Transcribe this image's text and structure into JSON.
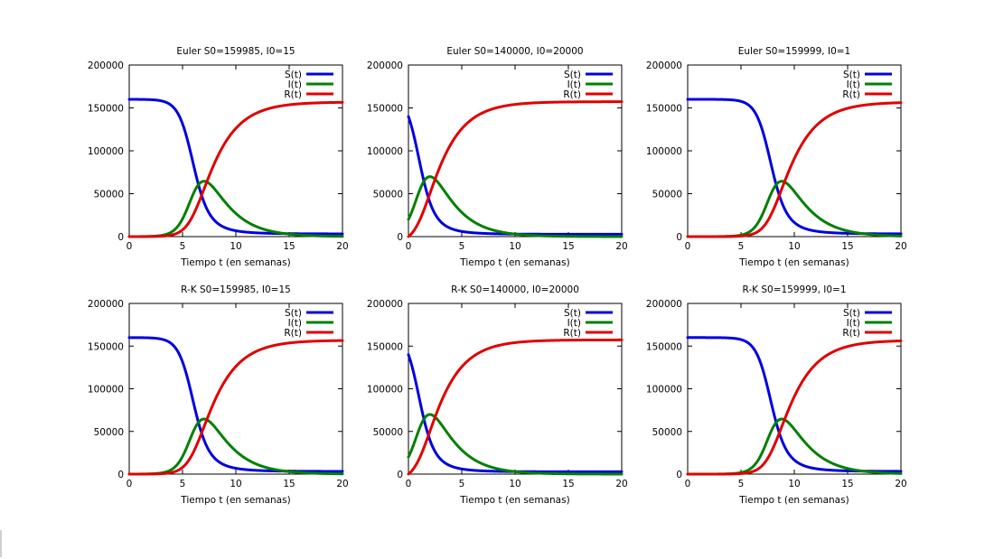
{
  "chart_data": [
    {
      "type": "line",
      "title": "Euler S0=159985, I0=15",
      "xlabel": "Tiempo t (en semanas)",
      "ylabel": "",
      "xlim": [
        0,
        20
      ],
      "ylim": [
        0,
        200000
      ],
      "xticks": [
        "0",
        "5",
        "10",
        "15",
        "20"
      ],
      "yticks": [
        "0",
        "50000",
        "100000",
        "150000",
        "200000"
      ],
      "params": {
        "S0": 159985,
        "I0": 15
      },
      "legend": "top-right",
      "series": [
        {
          "name": "S(t)",
          "color": "#0000e0"
        },
        {
          "name": "I(t)",
          "color": "#008000"
        },
        {
          "name": "R(t)",
          "color": "#e00000"
        }
      ]
    },
    {
      "type": "line",
      "title": "Euler S0=140000, I0=20000",
      "xlabel": "Tiempo t (en semanas)",
      "ylabel": "",
      "xlim": [
        0,
        20
      ],
      "ylim": [
        0,
        200000
      ],
      "xticks": [
        "0",
        "5",
        "10",
        "15",
        "20"
      ],
      "yticks": [
        "0",
        "50000",
        "100000",
        "150000",
        "200000"
      ],
      "params": {
        "S0": 140000,
        "I0": 20000
      },
      "legend": "top-right",
      "series": [
        {
          "name": "S(t)",
          "color": "#0000e0"
        },
        {
          "name": "I(t)",
          "color": "#008000"
        },
        {
          "name": "R(t)",
          "color": "#e00000"
        }
      ]
    },
    {
      "type": "line",
      "title": "Euler S0=159999, I0=1",
      "xlabel": "Tiempo t (en semanas)",
      "ylabel": "",
      "xlim": [
        0,
        20
      ],
      "ylim": [
        0,
        200000
      ],
      "xticks": [
        "0",
        "5",
        "10",
        "15",
        "20"
      ],
      "yticks": [
        "0",
        "50000",
        "100000",
        "150000",
        "200000"
      ],
      "params": {
        "S0": 159999,
        "I0": 1
      },
      "legend": "top-right",
      "series": [
        {
          "name": "S(t)",
          "color": "#0000e0"
        },
        {
          "name": "I(t)",
          "color": "#008000"
        },
        {
          "name": "R(t)",
          "color": "#e00000"
        }
      ]
    },
    {
      "type": "line",
      "title": "R-K S0=159985, I0=15",
      "xlabel": "Tiempo t (en semanas)",
      "ylabel": "",
      "xlim": [
        0,
        20
      ],
      "ylim": [
        0,
        200000
      ],
      "xticks": [
        "0",
        "5",
        "10",
        "15",
        "20"
      ],
      "yticks": [
        "0",
        "50000",
        "100000",
        "150000",
        "200000"
      ],
      "params": {
        "S0": 159985,
        "I0": 15
      },
      "legend": "top-right",
      "series": [
        {
          "name": "S(t)",
          "color": "#0000e0"
        },
        {
          "name": "I(t)",
          "color": "#008000"
        },
        {
          "name": "R(t)",
          "color": "#e00000"
        }
      ]
    },
    {
      "type": "line",
      "title": "R-K S0=140000, I0=20000",
      "xlabel": "Tiempo t (en semanas)",
      "ylabel": "",
      "xlim": [
        0,
        20
      ],
      "ylim": [
        0,
        200000
      ],
      "xticks": [
        "0",
        "5",
        "10",
        "15",
        "20"
      ],
      "yticks": [
        "0",
        "50000",
        "100000",
        "150000",
        "200000"
      ],
      "params": {
        "S0": 140000,
        "I0": 20000
      },
      "legend": "top-right",
      "series": [
        {
          "name": "S(t)",
          "color": "#0000e0"
        },
        {
          "name": "I(t)",
          "color": "#008000"
        },
        {
          "name": "R(t)",
          "color": "#e00000"
        }
      ]
    },
    {
      "type": "line",
      "title": "R-K S0=159999, I0=1",
      "xlabel": "Tiempo t (en semanas)",
      "ylabel": "",
      "xlim": [
        0,
        20
      ],
      "ylim": [
        0,
        200000
      ],
      "xticks": [
        "0",
        "5",
        "10",
        "15",
        "20"
      ],
      "yticks": [
        "0",
        "50000",
        "100000",
        "150000",
        "200000"
      ],
      "params": {
        "S0": 159999,
        "I0": 1
      },
      "legend": "top-right",
      "series": [
        {
          "name": "S(t)",
          "color": "#0000e0"
        },
        {
          "name": "I(t)",
          "color": "#008000"
        },
        {
          "name": "R(t)",
          "color": "#e00000"
        }
      ]
    }
  ]
}
